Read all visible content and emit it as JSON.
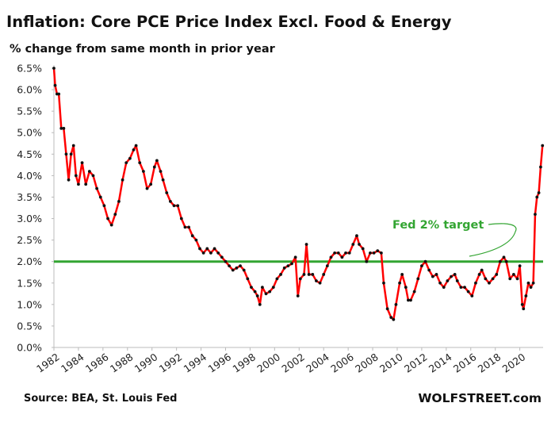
{
  "chart_data": {
    "type": "line",
    "title": "Inflation: Core PCE Price Index Excl. Food & Energy",
    "subtitle": "% change from same month in prior year",
    "source": "Source: BEA, St. Louis Fed",
    "credit": "WOLFSTREET.com",
    "target_label": "Fed 2% target",
    "target_value": 2.0,
    "target_color": "#33a532",
    "xlim": [
      1982,
      2021.9
    ],
    "xticks": [
      1982,
      1984,
      1986,
      1988,
      1990,
      1992,
      1994,
      1996,
      1998,
      2000,
      2002,
      2004,
      2006,
      2008,
      2010,
      2012,
      2014,
      2016,
      2018,
      2020
    ],
    "ylim": [
      0,
      6.5
    ],
    "yticks": [
      {
        "value": 0,
        "label": "0.0%"
      },
      {
        "value": 0.5,
        "label": "0.5%"
      },
      {
        "value": 1,
        "label": "1.0%"
      },
      {
        "value": 1.5,
        "label": "1.5%"
      },
      {
        "value": 2,
        "label": "2.0%"
      },
      {
        "value": 2.5,
        "label": "2.5%"
      },
      {
        "value": 3,
        "label": "3.0%"
      },
      {
        "value": 3.5,
        "label": "3.5%"
      },
      {
        "value": 4,
        "label": "4.0%"
      },
      {
        "value": 4.5,
        "label": "4.5%"
      },
      {
        "value": 5,
        "label": "5.0%"
      },
      {
        "value": 5.5,
        "label": "5.5%"
      },
      {
        "value": 6,
        "label": "6.0%"
      },
      {
        "value": 6.5,
        "label": "6.5%"
      }
    ],
    "x": [
      1982.0,
      1982.1,
      1982.25,
      1982.4,
      1982.6,
      1982.8,
      1983.0,
      1983.2,
      1983.4,
      1983.6,
      1983.8,
      1984.0,
      1984.3,
      1984.6,
      1984.9,
      1985.2,
      1985.5,
      1985.8,
      1986.1,
      1986.4,
      1986.7,
      1987.0,
      1987.3,
      1987.6,
      1987.9,
      1988.2,
      1988.5,
      1988.7,
      1989.0,
      1989.3,
      1989.6,
      1989.9,
      1990.2,
      1990.4,
      1990.7,
      1990.9,
      1991.2,
      1991.5,
      1991.8,
      1992.1,
      1992.4,
      1992.7,
      1993.0,
      1993.3,
      1993.6,
      1993.9,
      1994.2,
      1994.5,
      1994.8,
      1995.1,
      1995.4,
      1995.7,
      1996.0,
      1996.3,
      1996.6,
      1996.9,
      1997.2,
      1997.5,
      1997.8,
      1998.1,
      1998.4,
      1998.6,
      1998.8,
      1999.0,
      1999.3,
      1999.6,
      1999.9,
      2000.2,
      2000.5,
      2000.8,
      2001.1,
      2001.4,
      2001.7,
      2001.9,
      2002.1,
      2002.4,
      2002.6,
      2002.8,
      2003.1,
      2003.4,
      2003.7,
      2004.0,
      2004.3,
      2004.6,
      2004.9,
      2005.2,
      2005.5,
      2005.8,
      2006.1,
      2006.4,
      2006.7,
      2006.9,
      2007.2,
      2007.5,
      2007.8,
      2008.1,
      2008.4,
      2008.7,
      2008.9,
      2009.2,
      2009.5,
      2009.7,
      2009.9,
      2010.2,
      2010.4,
      2010.7,
      2010.9,
      2011.1,
      2011.4,
      2011.7,
      2012.0,
      2012.3,
      2012.6,
      2012.9,
      2013.2,
      2013.5,
      2013.8,
      2014.1,
      2014.4,
      2014.7,
      2014.9,
      2015.2,
      2015.5,
      2015.8,
      2016.1,
      2016.4,
      2016.7,
      2016.9,
      2017.2,
      2017.5,
      2017.8,
      2018.1,
      2018.4,
      2018.7,
      2018.9,
      2019.2,
      2019.5,
      2019.8,
      2020.0,
      2020.2,
      2020.3,
      2020.5,
      2020.7,
      2020.9,
      2021.1,
      2021.25,
      2021.4,
      2021.55,
      2021.7,
      2021.85
    ],
    "series": [
      {
        "color": "#ff0000",
        "marker_color": "#111111",
        "values": [
          6.5,
          6.1,
          5.9,
          5.9,
          5.1,
          5.1,
          4.5,
          3.9,
          4.5,
          4.7,
          4.0,
          3.8,
          4.3,
          3.8,
          4.1,
          4.0,
          3.7,
          3.5,
          3.3,
          3.0,
          2.85,
          3.1,
          3.4,
          3.9,
          4.3,
          4.4,
          4.6,
          4.7,
          4.3,
          4.1,
          3.7,
          3.8,
          4.2,
          4.35,
          4.1,
          3.9,
          3.6,
          3.4,
          3.3,
          3.3,
          3.0,
          2.8,
          2.8,
          2.6,
          2.5,
          2.3,
          2.2,
          2.3,
          2.2,
          2.3,
          2.2,
          2.1,
          2.0,
          1.9,
          1.8,
          1.85,
          1.9,
          1.8,
          1.6,
          1.4,
          1.3,
          1.2,
          1.0,
          1.4,
          1.25,
          1.3,
          1.4,
          1.6,
          1.7,
          1.85,
          1.9,
          1.95,
          2.1,
          1.2,
          1.6,
          1.7,
          2.4,
          1.7,
          1.7,
          1.55,
          1.5,
          1.7,
          1.9,
          2.1,
          2.2,
          2.2,
          2.1,
          2.2,
          2.2,
          2.4,
          2.6,
          2.4,
          2.3,
          2.0,
          2.2,
          2.2,
          2.25,
          2.2,
          1.5,
          0.9,
          0.7,
          0.65,
          1.0,
          1.5,
          1.7,
          1.4,
          1.1,
          1.1,
          1.3,
          1.6,
          1.9,
          2.0,
          1.8,
          1.65,
          1.7,
          1.5,
          1.4,
          1.55,
          1.65,
          1.7,
          1.55,
          1.4,
          1.4,
          1.3,
          1.2,
          1.5,
          1.7,
          1.8,
          1.6,
          1.5,
          1.6,
          1.7,
          2.0,
          2.1,
          2.0,
          1.6,
          1.7,
          1.6,
          1.9,
          1.0,
          0.9,
          1.2,
          1.5,
          1.4,
          1.5,
          3.1,
          3.5,
          3.6,
          4.2,
          4.7
        ]
      }
    ]
  }
}
